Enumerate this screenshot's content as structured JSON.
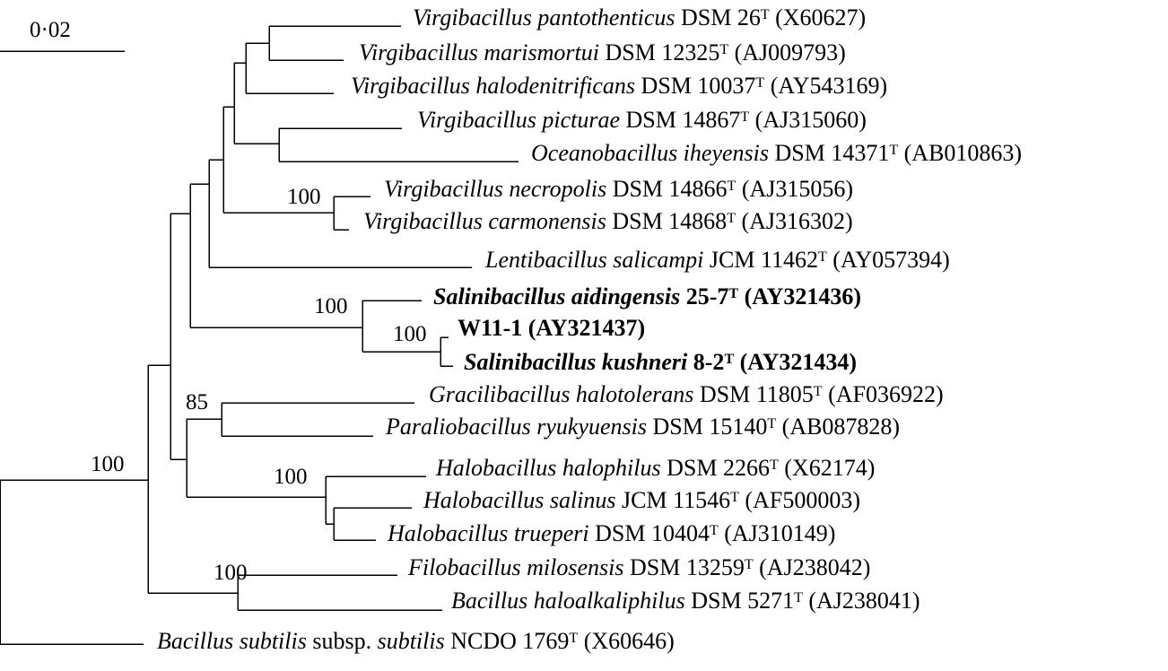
{
  "scale_bar": {
    "label": "0·02"
  },
  "taxa": [
    {
      "id": "pantothenticus",
      "name": "Virgibacillus pantothenticus",
      "strain": "DSM 26",
      "sup": "T",
      "accession": "(X60627)",
      "bold": false
    },
    {
      "id": "marismortui",
      "name": "Virgibacillus marismortui",
      "strain": "DSM 12325",
      "sup": "T",
      "accession": "(AJ009793)",
      "bold": false
    },
    {
      "id": "halodenitrificans",
      "name": "Virgibacillus halodenitrificans",
      "strain": "DSM 10037",
      "sup": "T",
      "accession": "(AY543169)",
      "bold": false
    },
    {
      "id": "picturae",
      "name": "Virgibacillus picturae",
      "strain": "DSM 14867",
      "sup": "T",
      "accession": "(AJ315060)",
      "bold": false
    },
    {
      "id": "iheyensis",
      "name": "Oceanobacillus iheyensis",
      "strain": "DSM 14371",
      "sup": "T",
      "accession": "(AB010863)",
      "bold": false
    },
    {
      "id": "necropolis",
      "name": "Virgibacillus necropolis",
      "strain": "DSM 14866",
      "sup": "T",
      "accession": "(AJ315056)",
      "bold": false
    },
    {
      "id": "carmonensis",
      "name": "Virgibacillus carmonensis",
      "strain": "DSM 14868",
      "sup": "T",
      "accession": "(AJ316302)",
      "bold": false
    },
    {
      "id": "salicampi",
      "name": "Lentibacillus salicampi",
      "strain": "JCM 11462",
      "sup": "T",
      "accession": "(AY057394)",
      "bold": false
    },
    {
      "id": "aidingensis",
      "name": "Salinibacillus aidingensis",
      "strain": "25-7",
      "sup": "T",
      "accession": "(AY321436)",
      "bold": true
    },
    {
      "id": "w11",
      "name": "",
      "strain": "W11-1",
      "sup": "",
      "accession": "(AY321437)",
      "bold": true
    },
    {
      "id": "kushneri",
      "name": "Salinibacillus kushneri",
      "strain": "8-2",
      "sup": "T",
      "accession": "(AY321434)",
      "bold": true
    },
    {
      "id": "halotolerans",
      "name": "Gracilibacillus halotolerans",
      "strain": "DSM 11805",
      "sup": "T",
      "accession": "(AF036922)",
      "bold": false
    },
    {
      "id": "ryukyuensis",
      "name": "Paraliobacillus ryukyuensis",
      "strain": "DSM 15140",
      "sup": "T",
      "accession": "(AB087828)",
      "bold": false
    },
    {
      "id": "halophilus",
      "name": "Halobacillus halophilus",
      "strain": "DSM 2266",
      "sup": "T",
      "accession": "(X62174)",
      "bold": false
    },
    {
      "id": "salinus",
      "name": "Halobacillus salinus",
      "strain": "JCM 11546",
      "sup": "T",
      "accession": "(AF500003)",
      "bold": false
    },
    {
      "id": "trueperi",
      "name": "Halobacillus trueperi",
      "strain": "DSM 10404",
      "sup": "T",
      "accession": "(AJ310149)",
      "bold": false
    },
    {
      "id": "milosensis",
      "name": "Filobacillus milosensis",
      "strain": "DSM 13259",
      "sup": "T",
      "accession": "(AJ238042)",
      "bold": false
    },
    {
      "id": "haloalkaliphilus",
      "name": "Bacillus haloalkaliphilus",
      "strain": "DSM 5271",
      "sup": "T",
      "accession": "(AJ238041)",
      "bold": false
    },
    {
      "id": "subtilis",
      "name": "Bacillus subtilis",
      "mid": "subsp.",
      "name2": "subtilis",
      "strain": "NCDO 1769",
      "sup": "T",
      "accession": "(X60646)",
      "bold": false
    }
  ],
  "bootstrap": [
    {
      "id": "necropolis_carmonensis",
      "value": "100"
    },
    {
      "id": "salinibacillus",
      "value": "100"
    },
    {
      "id": "w11_kushneri",
      "value": "100"
    },
    {
      "id": "gracili_paralio",
      "value": "85"
    },
    {
      "id": "halobacillus",
      "value": "100"
    },
    {
      "id": "filo_bacillus",
      "value": "100"
    },
    {
      "id": "ingroup",
      "value": "100"
    }
  ]
}
